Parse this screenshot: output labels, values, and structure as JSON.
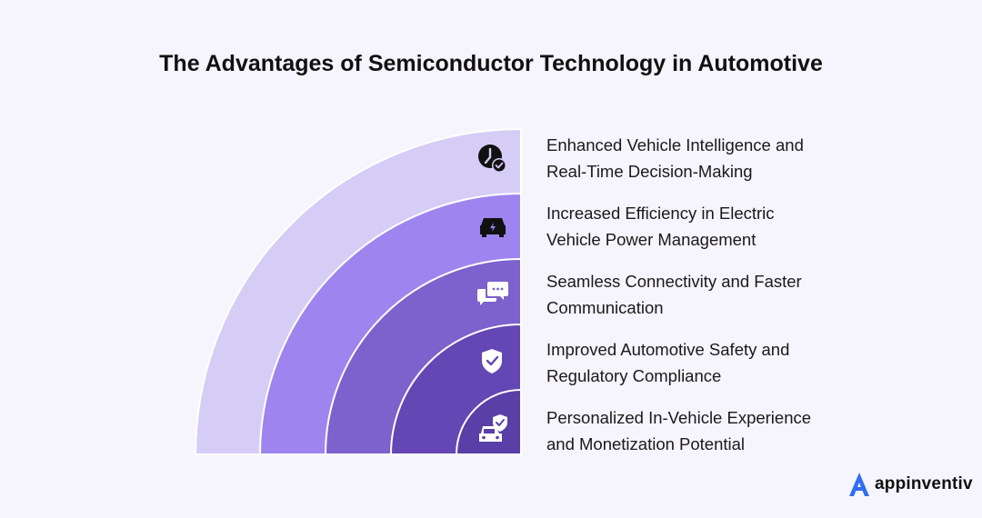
{
  "title": "The Advantages of Semiconductor Technology in Automotive",
  "colors": {
    "background": "#f6f4fc",
    "bands": [
      "#d6cdf6",
      "#9e84ef",
      "#7d61cc",
      "#6446b5",
      "#5a3fa8"
    ],
    "icon": "#111111",
    "brand_accent": "#2f6df6"
  },
  "advantages": [
    {
      "line1": "Enhanced Vehicle Intelligence and",
      "line2": "Real-Time Decision-Making",
      "icon": "clock-check-icon"
    },
    {
      "line1": "Increased Efficiency in Electric",
      "line2": "Vehicle Power Management",
      "icon": "electric-car-icon"
    },
    {
      "line1": "Seamless Connectivity and Faster",
      "line2": "Communication",
      "icon": "chat-bubbles-icon"
    },
    {
      "line1": "Improved Automotive Safety and",
      "line2": "Regulatory Compliance",
      "icon": "shield-check-icon"
    },
    {
      "line1": "Personalized In-Vehicle Experience",
      "line2": "and Monetization Potential",
      "icon": "car-shield-icon"
    }
  ],
  "brand": {
    "name": "appinventiv",
    "logo": "appinventiv-logo-icon"
  }
}
